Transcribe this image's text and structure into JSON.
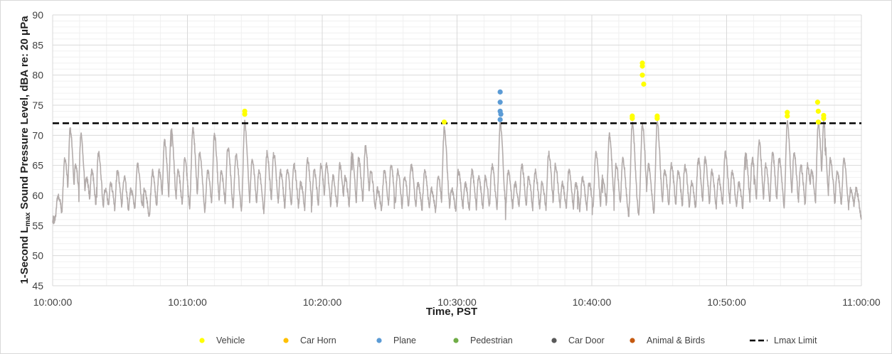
{
  "chart_data": {
    "type": "line",
    "xlabel": "Time, PST",
    "ylabel_prefix": "1-Second L",
    "ylabel_sub": "max",
    "ylabel_suffix": " Sound Pressure Level, dBA re: 20 μPa",
    "ylim": [
      45,
      90
    ],
    "yticks": [
      45,
      50,
      55,
      60,
      65,
      70,
      75,
      80,
      85,
      90
    ],
    "xlim_minutes": [
      0,
      60
    ],
    "xticks": [
      "10:00:00",
      "10:10:00",
      "10:20:00",
      "10:30:00",
      "10:40:00",
      "10:50:00",
      "11:00:00"
    ],
    "grid": "major and minor",
    "legend_position": "bottom",
    "limit": {
      "name": "Lmax Limit",
      "value": 72,
      "color": "#000000"
    },
    "series": [
      {
        "name": "Vehicle",
        "color": "#ffff00",
        "points": [
          [
            14.25,
            73.5
          ],
          [
            14.25,
            74.0
          ],
          [
            29.05,
            72.2
          ],
          [
            43.0,
            72.8
          ],
          [
            43.0,
            73.2
          ],
          [
            43.75,
            82.0
          ],
          [
            43.75,
            81.5
          ],
          [
            43.75,
            80.0
          ],
          [
            43.85,
            78.5
          ],
          [
            44.85,
            72.8
          ],
          [
            44.85,
            73.2
          ],
          [
            54.5,
            73.2
          ],
          [
            54.5,
            73.8
          ],
          [
            56.75,
            75.5
          ],
          [
            56.8,
            74.0
          ],
          [
            56.8,
            72.2
          ],
          [
            57.2,
            73.3
          ],
          [
            57.2,
            72.8
          ]
        ]
      },
      {
        "name": "Car Horn",
        "color": "#ffc000",
        "points": []
      },
      {
        "name": "Plane",
        "color": "#5b9bd5",
        "points": [
          [
            33.2,
            77.2
          ],
          [
            33.2,
            75.5
          ],
          [
            33.2,
            74.0
          ],
          [
            33.25,
            73.5
          ],
          [
            33.2,
            72.6
          ]
        ]
      },
      {
        "name": "Pedestrian",
        "color": "#70ad47",
        "points": []
      },
      {
        "name": "Car Door",
        "color": "#595959",
        "points": []
      },
      {
        "name": "Animal & Birds",
        "color": "#c55a11",
        "points": []
      }
    ],
    "trace": {
      "color": "#b3acab",
      "baseline_db": 55,
      "peaks": [
        [
          0.4,
          60
        ],
        [
          0.9,
          66
        ],
        [
          1.3,
          71
        ],
        [
          1.7,
          65
        ],
        [
          2.1,
          70
        ],
        [
          2.5,
          63
        ],
        [
          2.9,
          64
        ],
        [
          3.4,
          67
        ],
        [
          3.9,
          61
        ],
        [
          4.3,
          62
        ],
        [
          4.8,
          64
        ],
        [
          5.3,
          63
        ],
        [
          5.8,
          61
        ],
        [
          6.3,
          65
        ],
        [
          6.8,
          61
        ],
        [
          7.4,
          64
        ],
        [
          7.9,
          64
        ],
        [
          8.3,
          69
        ],
        [
          8.8,
          71
        ],
        [
          9.3,
          64
        ],
        [
          9.8,
          66
        ],
        [
          10.4,
          71
        ],
        [
          10.9,
          67
        ],
        [
          11.5,
          64
        ],
        [
          12.0,
          70
        ],
        [
          12.5,
          64
        ],
        [
          13.0,
          68
        ],
        [
          13.6,
          67
        ],
        [
          14.25,
          72
        ],
        [
          14.8,
          66
        ],
        [
          15.3,
          64
        ],
        [
          15.9,
          67
        ],
        [
          16.4,
          67
        ],
        [
          16.9,
          64
        ],
        [
          17.4,
          64
        ],
        [
          17.9,
          65
        ],
        [
          18.4,
          62
        ],
        [
          18.9,
          66
        ],
        [
          19.4,
          64
        ],
        [
          19.9,
          65
        ],
        [
          20.3,
          65
        ],
        [
          20.8,
          63
        ],
        [
          21.3,
          65
        ],
        [
          21.7,
          63
        ],
        [
          22.2,
          67
        ],
        [
          22.7,
          66
        ],
        [
          23.2,
          68
        ],
        [
          23.6,
          64
        ],
        [
          24.1,
          61
        ],
        [
          24.6,
          64
        ],
        [
          25.1,
          65
        ],
        [
          25.6,
          64
        ],
        [
          26.1,
          63
        ],
        [
          26.6,
          65
        ],
        [
          27.1,
          62
        ],
        [
          27.6,
          64
        ],
        [
          28.1,
          61
        ],
        [
          28.6,
          63
        ],
        [
          29.05,
          71
        ],
        [
          29.6,
          61
        ],
        [
          30.1,
          64
        ],
        [
          30.6,
          62
        ],
        [
          31.1,
          64
        ],
        [
          31.6,
          63
        ],
        [
          32.1,
          63
        ],
        [
          32.6,
          65
        ],
        [
          33.2,
          72
        ],
        [
          33.8,
          64
        ],
        [
          34.3,
          62
        ],
        [
          34.8,
          65
        ],
        [
          35.3,
          63
        ],
        [
          35.8,
          64
        ],
        [
          36.3,
          62
        ],
        [
          36.8,
          67
        ],
        [
          37.3,
          65
        ],
        [
          37.8,
          62
        ],
        [
          38.3,
          64
        ],
        [
          38.8,
          62
        ],
        [
          39.3,
          63
        ],
        [
          39.8,
          62
        ],
        [
          40.3,
          67
        ],
        [
          40.8,
          63
        ],
        [
          41.3,
          70
        ],
        [
          41.8,
          65
        ],
        [
          42.3,
          66
        ],
        [
          43.0,
          72
        ],
        [
          43.75,
          72
        ],
        [
          44.2,
          65
        ],
        [
          44.85,
          72
        ],
        [
          45.4,
          64
        ],
        [
          45.9,
          65
        ],
        [
          46.4,
          64
        ],
        [
          46.9,
          65
        ],
        [
          47.4,
          62
        ],
        [
          47.9,
          66
        ],
        [
          48.4,
          66
        ],
        [
          48.9,
          64
        ],
        [
          49.4,
          63
        ],
        [
          49.9,
          67
        ],
        [
          50.4,
          64
        ],
        [
          50.9,
          62
        ],
        [
          51.4,
          67
        ],
        [
          51.9,
          66
        ],
        [
          52.4,
          69
        ],
        [
          52.9,
          65
        ],
        [
          53.4,
          67
        ],
        [
          53.9,
          66
        ],
        [
          54.5,
          72
        ],
        [
          55.0,
          67
        ],
        [
          55.5,
          65
        ],
        [
          56.0,
          65
        ],
        [
          56.3,
          64
        ],
        [
          56.8,
          72
        ],
        [
          57.2,
          72
        ],
        [
          57.7,
          66
        ],
        [
          58.2,
          64
        ],
        [
          58.7,
          66
        ],
        [
          59.2,
          61
        ],
        [
          59.6,
          61
        ]
      ]
    }
  }
}
